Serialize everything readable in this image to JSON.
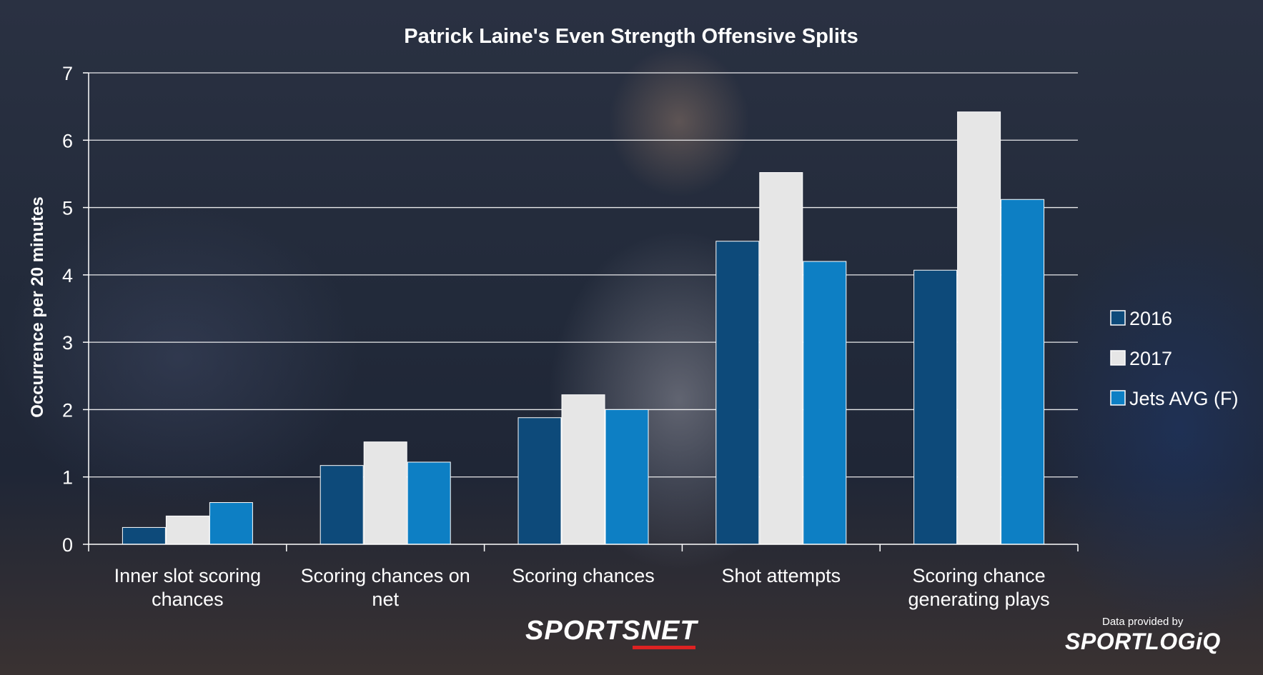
{
  "chart_data": {
    "type": "bar",
    "title": "Patrick Laine's Even Strength Offensive Splits",
    "ylabel": "Occurrence per 20 minutes",
    "xlabel": "",
    "ylim": [
      0,
      7
    ],
    "yticks": [
      0,
      1,
      2,
      3,
      4,
      5,
      6,
      7
    ],
    "grid": true,
    "legend_position": "right",
    "categories": [
      [
        "Inner slot scoring",
        "chances"
      ],
      [
        "Scoring chances on",
        "net"
      ],
      [
        "Scoring chances"
      ],
      [
        "Shot attempts"
      ],
      [
        "Scoring chance",
        "generating plays"
      ]
    ],
    "series": [
      {
        "name": "2016",
        "color": "#0d4a7a",
        "values": [
          0.25,
          1.17,
          1.88,
          4.5,
          4.07
        ]
      },
      {
        "name": "2017",
        "color": "#e6e6e6",
        "values": [
          0.42,
          1.52,
          2.22,
          5.52,
          6.42
        ]
      },
      {
        "name": "Jets AVG (F)",
        "color": "#0d7fc4",
        "values": [
          0.62,
          1.22,
          2.0,
          4.2,
          5.12
        ]
      }
    ]
  },
  "branding": {
    "sportsnet": "SPORTSNET",
    "provided_by": "Data provided by",
    "sportlogiq": "SPORTLOGiQ"
  }
}
